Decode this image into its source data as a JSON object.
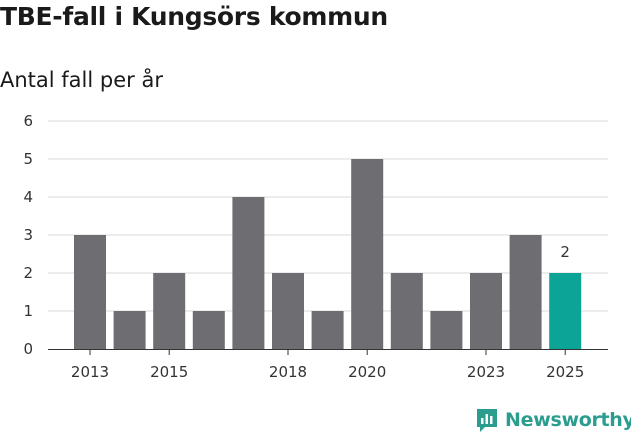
{
  "header": {
    "title": "TBE-fall i Kungsörs kommun",
    "subtitle": "Antal fall per år"
  },
  "branding": {
    "name": "Newsworthy",
    "color": "#2a9d8f"
  },
  "colors": {
    "bar": "#6e6d71",
    "highlight": "#0da498",
    "grid": "#d9d9d9",
    "axis": "#333333"
  },
  "chart_data": {
    "type": "bar",
    "title": "TBE-fall i Kungsörs kommun",
    "subtitle": "Antal fall per år",
    "xlabel": "",
    "ylabel": "",
    "categories": [
      "2013",
      "2014",
      "2015",
      "2016",
      "2017",
      "2018",
      "2019",
      "2020",
      "2021",
      "2022",
      "2023",
      "2024",
      "2025"
    ],
    "values": [
      3,
      1,
      2,
      1,
      4,
      2,
      1,
      5,
      2,
      1,
      2,
      3,
      2
    ],
    "x_tick_labels": [
      "2013",
      "2015",
      "2018",
      "2020",
      "2023",
      "2025"
    ],
    "y_ticks": [
      0,
      1,
      2,
      3,
      4,
      5,
      6
    ],
    "ylim": [
      0,
      6
    ],
    "grid": true,
    "highlight_category": "2025",
    "data_labels": [
      {
        "category": "2025",
        "text": "2"
      }
    ]
  }
}
